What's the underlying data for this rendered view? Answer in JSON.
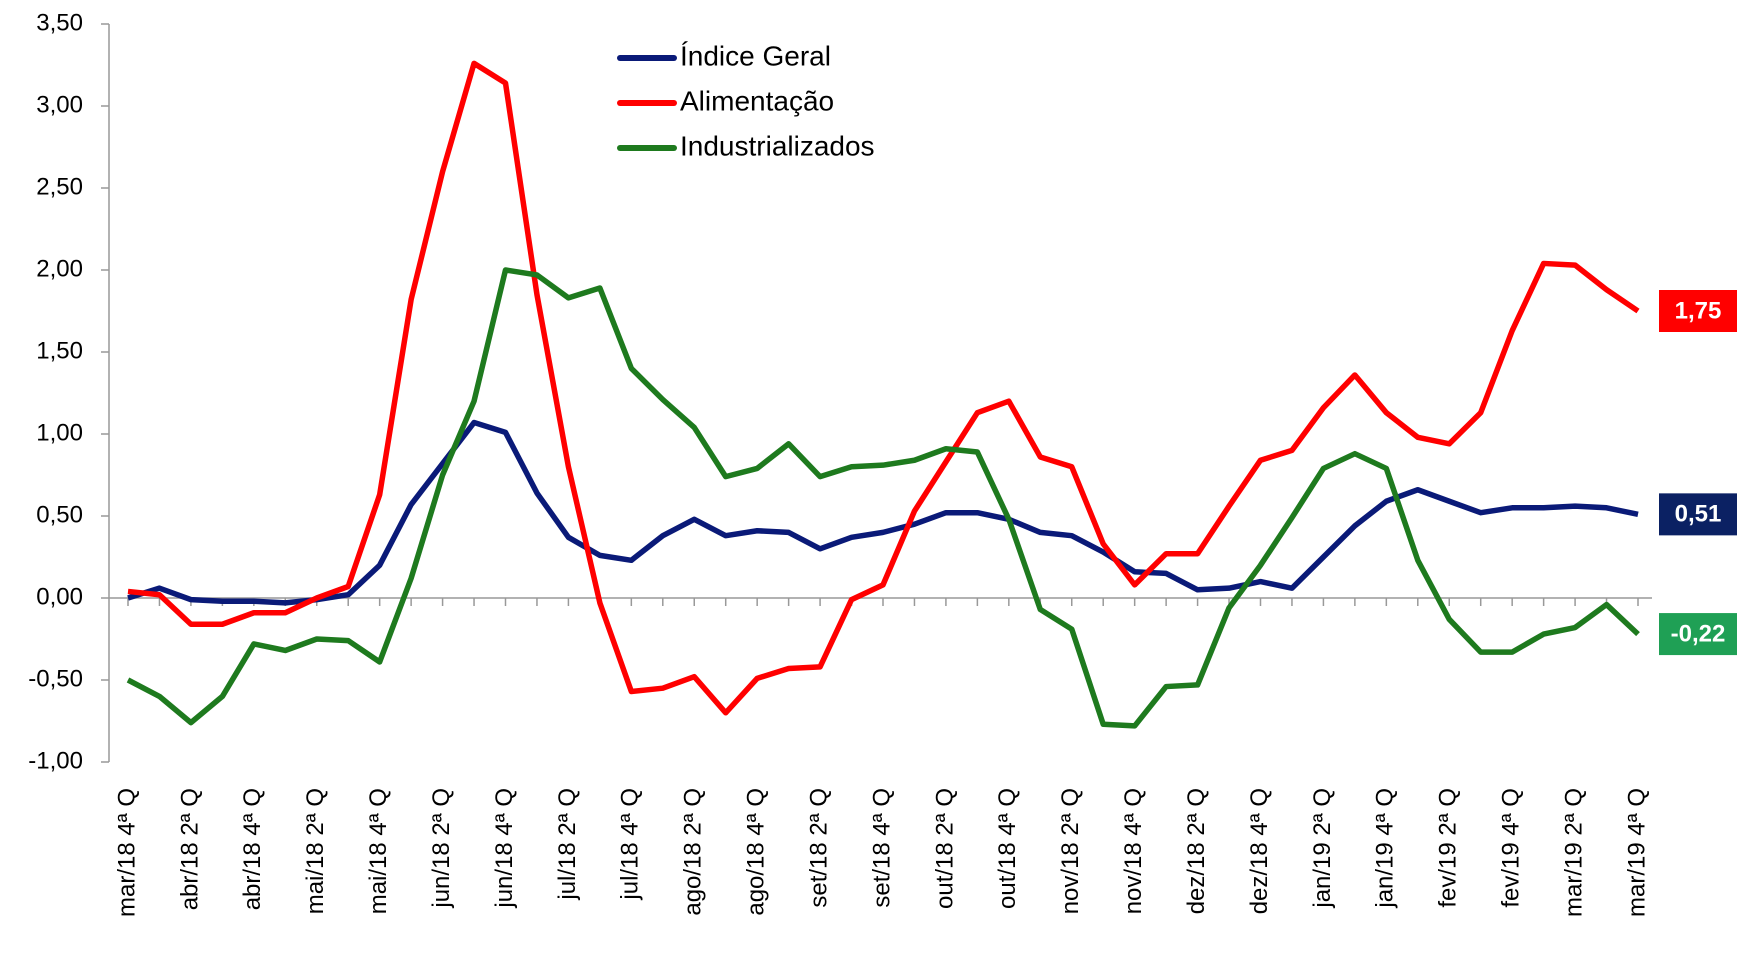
{
  "chart_data": {
    "type": "line",
    "categories": [
      "mar/18 4ª Q",
      null,
      "abr/18 2ª Q",
      null,
      "abr/18 4ª Q",
      null,
      "mai/18 2ª Q",
      null,
      "mai/18 4ª Q",
      null,
      "jun/18 2ª Q",
      null,
      "jun/18 4ª Q",
      null,
      "jul/18 2ª Q",
      null,
      "jul/18 4ª Q",
      null,
      "ago/18 2ª Q",
      null,
      "ago/18 4ª Q",
      null,
      "set/18 2ª Q",
      null,
      "set/18 4ª Q",
      null,
      "out/18 2ª Q",
      null,
      "out/18 4ª Q",
      null,
      "nov/18 2ª Q",
      null,
      "nov/18 4ª Q",
      null,
      "dez/18 2ª Q",
      null,
      "dez/18 4ª Q",
      null,
      "jan/19 2ª Q",
      null,
      "jan/19 4ª Q",
      null,
      "fev/19 2ª Q",
      null,
      "fev/19 4ª Q",
      null,
      "mar/19 2ª Q",
      null,
      "mar/19 4ª Q"
    ],
    "series": [
      {
        "name": "Índice Geral",
        "color": "#0a1a78",
        "label_color": "#0b2163",
        "values": [
          0.0,
          0.06,
          -0.01,
          -0.02,
          -0.02,
          -0.03,
          -0.01,
          0.02,
          0.2,
          0.57,
          0.82,
          1.07,
          1.01,
          0.64,
          0.37,
          0.26,
          0.23,
          0.38,
          0.48,
          0.38,
          0.41,
          0.4,
          0.3,
          0.37,
          0.4,
          0.45,
          0.52,
          0.52,
          0.48,
          0.4,
          0.38,
          0.28,
          0.16,
          0.15,
          0.05,
          0.06,
          0.1,
          0.06,
          0.25,
          0.44,
          0.59,
          0.66,
          0.59,
          0.52,
          0.55,
          0.55,
          0.56,
          0.55,
          0.51
        ],
        "value_labels": [
          null,
          null,
          null,
          null,
          null,
          null,
          null,
          null,
          null,
          null,
          null,
          null,
          null,
          null,
          null,
          null,
          null,
          null,
          null,
          null,
          null,
          null,
          null,
          null,
          null,
          null,
          null,
          null,
          null,
          null,
          null,
          null,
          null,
          null,
          null,
          null,
          null,
          null,
          null,
          null,
          null,
          null,
          null,
          null,
          null,
          null,
          null,
          null,
          "0,51"
        ]
      },
      {
        "name": "Alimentação",
        "color": "#ff0000",
        "label_color": "#ff0000",
        "values": [
          0.04,
          0.02,
          -0.16,
          -0.16,
          -0.09,
          -0.09,
          0.0,
          0.07,
          0.63,
          1.82,
          2.6,
          3.26,
          3.14,
          1.85,
          0.8,
          -0.03,
          -0.57,
          -0.55,
          -0.48,
          -0.7,
          -0.49,
          -0.43,
          -0.42,
          -0.01,
          0.08,
          0.53,
          0.83,
          1.13,
          1.2,
          0.86,
          0.8,
          0.33,
          0.08,
          0.27,
          0.27,
          0.56,
          0.84,
          0.9,
          1.16,
          1.36,
          1.13,
          0.98,
          0.94,
          1.13,
          1.63,
          2.04,
          2.03,
          1.88,
          1.75
        ],
        "value_labels": [
          null,
          null,
          null,
          null,
          null,
          null,
          null,
          null,
          null,
          null,
          null,
          null,
          null,
          null,
          null,
          null,
          null,
          null,
          null,
          null,
          null,
          null,
          null,
          null,
          null,
          null,
          null,
          null,
          null,
          null,
          null,
          null,
          null,
          null,
          null,
          null,
          null,
          null,
          null,
          null,
          null,
          null,
          null,
          null,
          null,
          null,
          null,
          null,
          "1,75"
        ]
      },
      {
        "name": "Industrializados",
        "color": "#1e7a1e",
        "label_color": "#1fa055",
        "values": [
          -0.5,
          -0.6,
          -0.76,
          -0.6,
          -0.28,
          -0.32,
          -0.25,
          -0.26,
          -0.39,
          0.12,
          0.75,
          1.2,
          2.0,
          1.97,
          1.83,
          1.89,
          1.4,
          1.21,
          1.04,
          0.74,
          0.79,
          0.94,
          0.74,
          0.8,
          0.81,
          0.84,
          0.91,
          0.89,
          0.48,
          -0.07,
          -0.19,
          -0.77,
          -0.78,
          -0.54,
          -0.53,
          -0.06,
          0.2,
          0.49,
          0.79,
          0.88,
          0.79,
          0.23,
          -0.13,
          -0.33,
          -0.33,
          -0.22,
          -0.18,
          -0.04,
          -0.22
        ],
        "value_labels": [
          null,
          null,
          null,
          null,
          null,
          null,
          null,
          null,
          null,
          null,
          null,
          null,
          null,
          null,
          null,
          null,
          null,
          null,
          null,
          null,
          null,
          null,
          null,
          null,
          null,
          null,
          null,
          null,
          null,
          null,
          null,
          null,
          null,
          null,
          null,
          null,
          null,
          null,
          null,
          null,
          null,
          null,
          null,
          null,
          null,
          null,
          null,
          null,
          "-0,22"
        ]
      }
    ],
    "ylim": [
      -1,
      3.5
    ],
    "yticks": [
      {
        "value": -1,
        "label": "-1,00"
      },
      {
        "value": -0.5,
        "label": "-0,50"
      },
      {
        "value": 0,
        "label": "0,00"
      },
      {
        "value": 0.5,
        "label": "0,50"
      },
      {
        "value": 1,
        "label": "1,00"
      },
      {
        "value": 1.5,
        "label": "1,50"
      },
      {
        "value": 2,
        "label": "2,00"
      },
      {
        "value": 2.5,
        "label": "2,50"
      },
      {
        "value": 3,
        "label": "3,00"
      },
      {
        "value": 3.5,
        "label": "3,50"
      }
    ],
    "grid": false,
    "legend": "top"
  }
}
